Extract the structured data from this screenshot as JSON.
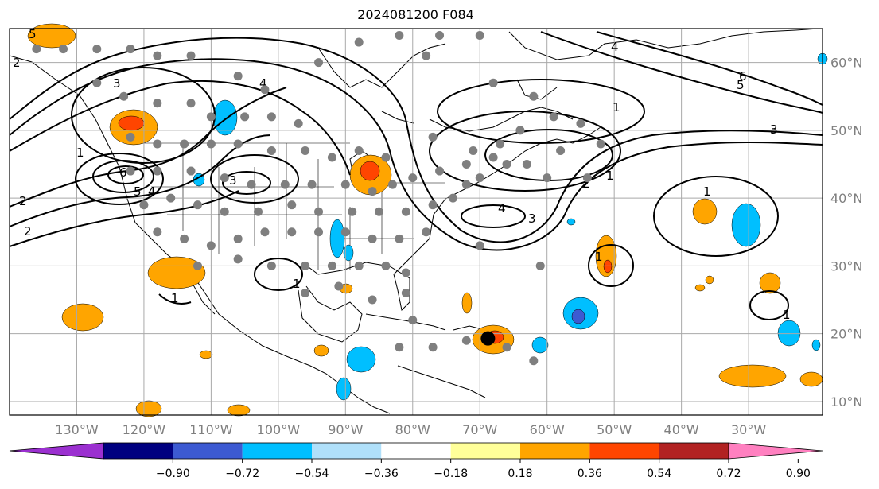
{
  "title": "2024081200 F084",
  "map": {
    "lon_range": [
      -140,
      -19
    ],
    "lat_range": [
      8,
      65
    ],
    "lon_labels": [
      "130°W",
      "120°W",
      "110°W",
      "100°W",
      "90°W",
      "80°W",
      "70°W",
      "60°W",
      "50°W",
      "40°W",
      "30°W"
    ],
    "lat_labels": [
      "60°N",
      "50°N",
      "40°N",
      "30°N",
      "20°N",
      "10°N"
    ],
    "gridlines": true,
    "storm_marker": {
      "label": "storm center",
      "lon": -68.8,
      "lat": 19.3
    },
    "contour_labels": [
      "5",
      "2",
      "3",
      "1",
      "6",
      "5",
      "4",
      "4",
      "1",
      "3",
      "3",
      "1",
      "2",
      "4",
      "1",
      "1",
      "1",
      "1",
      "6",
      "5",
      "2",
      "2",
      "1",
      "4",
      "3"
    ]
  },
  "colorbar": {
    "orientation": "horizontal",
    "extend": "both",
    "colors": [
      "#9b30d0",
      "#000080",
      "#3c5ad2",
      "#00bfff",
      "#b0e0fa",
      "#ffffff",
      "#ffff99",
      "#ffa500",
      "#ff4500",
      "#b22222",
      "#ff80c0"
    ],
    "tick_labels": [
      "−0.90",
      "−0.72",
      "−0.54",
      "−0.36",
      "−0.18",
      "0.18",
      "0.36",
      "0.54",
      "0.72",
      "0.90"
    ]
  }
}
